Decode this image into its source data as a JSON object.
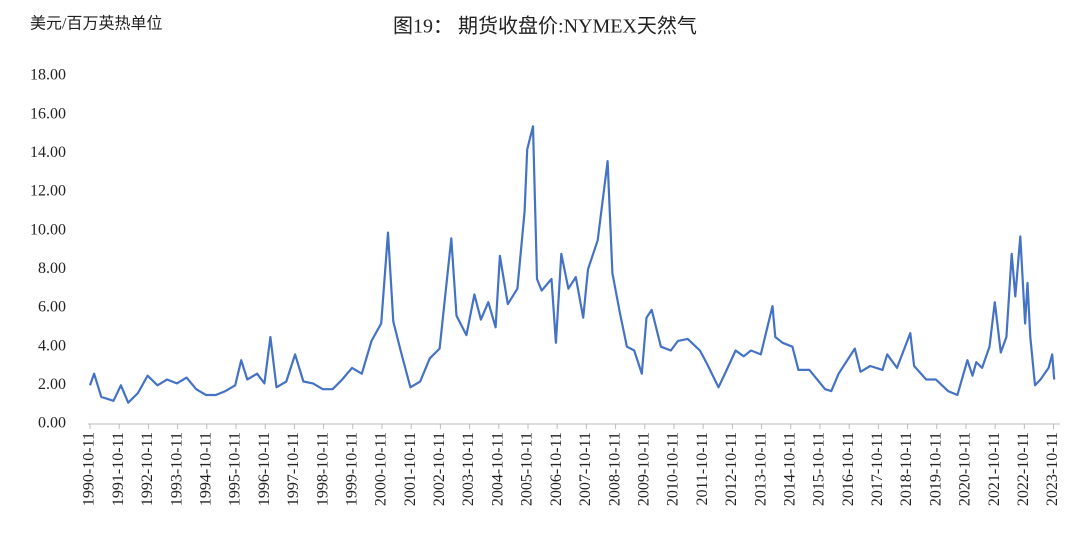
{
  "chart_data": {
    "type": "line",
    "title": "图19： 期货收盘价:NYMEX天然气",
    "y_label": "美元/百万英热单位",
    "x": [
      "1990-10-11",
      "1990-12-01",
      "1991-03-01",
      "1991-08-01",
      "1991-11-01",
      "1992-02-01",
      "1992-06-01",
      "1992-10-01",
      "1993-02-01",
      "1993-06-01",
      "1993-10-01",
      "1994-02-01",
      "1994-06-01",
      "1994-10-01",
      "1995-02-01",
      "1995-06-01",
      "1995-10-01",
      "1995-12-15",
      "1996-03-01",
      "1996-07-01",
      "1996-10-01",
      "1996-12-15",
      "1997-03-01",
      "1997-07-01",
      "1997-10-20",
      "1998-02-01",
      "1998-06-01",
      "1998-10-01",
      "1999-02-01",
      "1999-06-01",
      "1999-10-01",
      "2000-02-01",
      "2000-06-01",
      "2000-10-01",
      "2000-12-25",
      "2001-03-01",
      "2001-06-01",
      "2001-10-01",
      "2002-02-01",
      "2002-06-01",
      "2002-10-01",
      "2003-02-25",
      "2003-05-01",
      "2003-09-01",
      "2003-12-10",
      "2004-03-01",
      "2004-06-01",
      "2004-09-01",
      "2004-10-25",
      "2005-02-01",
      "2005-06-01",
      "2005-08-30",
      "2005-10-01",
      "2005-12-13",
      "2006-02-01",
      "2006-04-01",
      "2006-08-01",
      "2006-09-25",
      "2006-12-01",
      "2007-03-01",
      "2007-06-01",
      "2007-09-01",
      "2007-11-01",
      "2008-03-01",
      "2008-07-03",
      "2008-09-01",
      "2008-12-01",
      "2009-03-01",
      "2009-06-01",
      "2009-09-04",
      "2009-11-01",
      "2010-01-06",
      "2010-05-01",
      "2010-09-01",
      "2010-12-01",
      "2011-04-01",
      "2011-09-01",
      "2011-12-01",
      "2012-04-20",
      "2012-08-01",
      "2012-11-20",
      "2013-03-01",
      "2013-06-01",
      "2013-10-01",
      "2014-02-24",
      "2014-04-01",
      "2014-07-01",
      "2014-11-01",
      "2015-01-15",
      "2015-06-01",
      "2015-12-15",
      "2016-03-01",
      "2016-06-01",
      "2016-12-20",
      "2017-03-01",
      "2017-07-01",
      "2017-12-01",
      "2018-01-29",
      "2018-06-01",
      "2018-11-14",
      "2019-01-01",
      "2019-06-01",
      "2019-10-01",
      "2020-03-01",
      "2020-06-26",
      "2020-10-29",
      "2021-01-01",
      "2021-02-17",
      "2021-05-01",
      "2021-08-01",
      "2021-10-06",
      "2021-12-20",
      "2022-03-01",
      "2022-05-06",
      "2022-06-20",
      "2022-08-22",
      "2022-10-20",
      "2022-11-20",
      "2022-12-25",
      "2023-02-21",
      "2023-05-01",
      "2023-08-10",
      "2023-09-25",
      "2023-10-20"
    ],
    "series": [
      {
        "name": "NYMEX天然气",
        "color": "#4472c4",
        "values": [
          2.0,
          2.6,
          1.4,
          1.2,
          2.0,
          1.1,
          1.6,
          2.5,
          2.0,
          2.3,
          2.1,
          2.4,
          1.8,
          1.5,
          1.5,
          1.7,
          2.0,
          3.3,
          2.3,
          2.6,
          2.1,
          4.5,
          1.9,
          2.2,
          3.6,
          2.2,
          2.1,
          1.8,
          1.8,
          2.3,
          2.9,
          2.6,
          4.3,
          5.2,
          9.9,
          5.3,
          3.8,
          1.9,
          2.2,
          3.4,
          3.9,
          9.6,
          5.6,
          4.6,
          6.7,
          5.4,
          6.3,
          5.0,
          8.7,
          6.2,
          7.0,
          11.0,
          14.2,
          15.4,
          7.5,
          6.9,
          7.5,
          4.2,
          8.8,
          7.0,
          7.6,
          5.5,
          8.0,
          9.5,
          13.6,
          7.8,
          5.8,
          4.0,
          3.8,
          2.6,
          5.5,
          5.9,
          4.0,
          3.8,
          4.3,
          4.4,
          3.8,
          3.1,
          1.9,
          2.8,
          3.8,
          3.5,
          3.8,
          3.6,
          6.1,
          4.5,
          4.2,
          4.0,
          2.8,
          2.8,
          1.8,
          1.7,
          2.6,
          3.9,
          2.7,
          3.0,
          2.8,
          3.6,
          2.9,
          4.7,
          3.0,
          2.3,
          2.3,
          1.7,
          1.5,
          3.3,
          2.5,
          3.2,
          2.9,
          4.0,
          6.3,
          3.7,
          4.5,
          8.8,
          6.6,
          9.7,
          5.2,
          7.3,
          4.5,
          2.0,
          2.3,
          2.9,
          3.6,
          2.3
        ]
      }
    ],
    "xlim": [
      "1990-10-11",
      "2023-12-31"
    ],
    "xticks": [
      "1990-10-11",
      "1991-10-11",
      "1992-10-11",
      "1993-10-11",
      "1994-10-11",
      "1995-10-11",
      "1996-10-11",
      "1997-10-11",
      "1998-10-11",
      "1999-10-11",
      "2000-10-11",
      "2001-10-11",
      "2002-10-11",
      "2003-10-11",
      "2004-10-11",
      "2005-10-11",
      "2006-10-11",
      "2007-10-11",
      "2008-10-11",
      "2009-10-11",
      "2010-10-11",
      "2011-10-11",
      "2012-10-11",
      "2013-10-11",
      "2014-10-11",
      "2015-10-11",
      "2016-10-11",
      "2017-10-11",
      "2018-10-11",
      "2019-10-11",
      "2020-10-11",
      "2021-10-11",
      "2022-10-11",
      "2023-10-11"
    ],
    "ylim": [
      0,
      18
    ],
    "yticks": [
      {
        "value": 0,
        "label": "0.00"
      },
      {
        "value": 2,
        "label": "2.00"
      },
      {
        "value": 4,
        "label": "4.00"
      },
      {
        "value": 6,
        "label": "6.00"
      },
      {
        "value": 8,
        "label": "8.00"
      },
      {
        "value": 10,
        "label": "10.00"
      },
      {
        "value": 12,
        "label": "12.00"
      },
      {
        "value": 14,
        "label": "14.00"
      },
      {
        "value": 16,
        "label": "16.00"
      },
      {
        "value": 18,
        "label": "18.00"
      }
    ],
    "grid": false
  }
}
